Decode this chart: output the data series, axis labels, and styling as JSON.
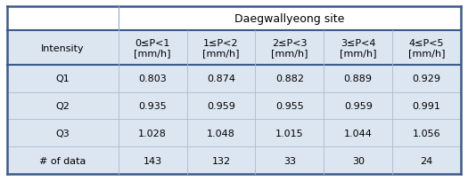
{
  "title": "Daegwallyeong site",
  "col_headers": [
    "0≤P<1\n[mm/h]",
    "1≤P<2\n[mm/h]",
    "2≤P<3\n[mm/h]",
    "3≤P<4\n[mm/h]",
    "4≤P<5\n[mm/h]"
  ],
  "row_labels": [
    "Intensity",
    "Q1",
    "Q2",
    "Q3",
    "# of data"
  ],
  "data": [
    [
      "0.803",
      "0.874",
      "0.882",
      "0.889",
      "0.929"
    ],
    [
      "0.935",
      "0.959",
      "0.955",
      "0.959",
      "0.991"
    ],
    [
      "1.028",
      "1.048",
      "1.015",
      "1.044",
      "1.056"
    ],
    [
      "143",
      "132",
      "33",
      "30",
      "24"
    ]
  ],
  "shaded_color": "#dce6f1",
  "white_color": "#ffffff",
  "border_color_dark": "#3a5a8a",
  "border_color_light": "#8faacc",
  "inner_line_color": "#b0b8c8",
  "font_size": 8.0,
  "title_font_size": 9.0,
  "figwidth": 5.25,
  "figheight": 2.05,
  "dpi": 100
}
